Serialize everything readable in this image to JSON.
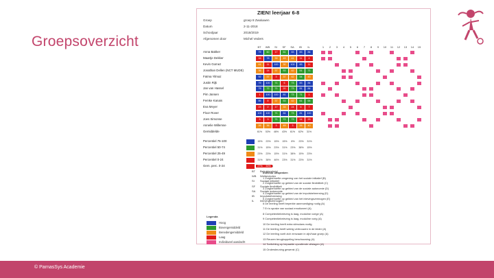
{
  "slide": {
    "title": "Groepsoverzicht",
    "footer": "© ParnasSys Academie"
  },
  "sheet": {
    "title": "ZIEN! leerjaar 6-8",
    "meta": [
      {
        "label": "Groep",
        "value": "groep 8 Zwaluwen"
      },
      {
        "label": "Datum",
        "value": "2-11-2018"
      },
      {
        "label": "Schooljaar",
        "value": "2018/2019"
      },
      {
        "label": "Afgenomen door",
        "value": "Michel Veders"
      }
    ],
    "columns": [
      "BT",
      "WB",
      "SI",
      "SF",
      "SA",
      "IB",
      "IL"
    ],
    "item_numbers": [
      "1",
      "2",
      "3",
      "4",
      "5",
      "6",
      "7",
      "8",
      "9",
      "10",
      "11",
      "12",
      "13",
      "14",
      "15"
    ],
    "students": [
      "Anna Bakker",
      "Maartje Dekker",
      "Kevin Gomez",
      "Jonathan Dellen (NCT MUDE)",
      "Fatma Yilmaz",
      "Justin Rijk",
      "Jan van Hassel",
      "Pim Jansen",
      "Femke Kanais",
      "Eva Meyer",
      "Floor Rover",
      "Joes Simonse",
      "Annelie Willemse",
      "Gemiddelde"
    ],
    "values": [
      [
        "79",
        "60",
        "17",
        "61",
        "83",
        "83",
        "84"
      ],
      [
        "16",
        "78",
        "39",
        "49",
        "41",
        "11",
        "4"
      ],
      [
        "41",
        "11",
        "100",
        "30",
        "100",
        "83",
        "11"
      ],
      [
        "36",
        "14",
        "37",
        "53",
        "42",
        "51",
        "71"
      ],
      [
        "92",
        "37",
        "3",
        "37",
        "42",
        "54",
        "43"
      ],
      [
        "79",
        "100",
        "71",
        "6",
        "73",
        "83",
        "84"
      ],
      [
        "79",
        "72",
        "71",
        "20",
        "73",
        "81",
        "84"
      ],
      [
        "1",
        "100",
        "100",
        "81",
        "73",
        "71",
        "1"
      ],
      [
        "86",
        "8",
        "37",
        "53",
        "42",
        "61",
        "64"
      ],
      [
        "23",
        "2",
        "17",
        "33",
        "24",
        "6",
        "7"
      ],
      [
        "100",
        "100",
        "71",
        "84",
        "73",
        "81",
        "100"
      ],
      [
        "3",
        "3",
        "71",
        "72",
        "73",
        "14",
        "23"
      ],
      [
        "26",
        "36",
        "3",
        "49",
        "3",
        "26",
        "40"
      ],
      [
        "61%",
        "53%",
        "46%",
        "43%",
        "61%",
        "62%",
        "31%"
      ]
    ],
    "summary": [
      {
        "label": "Percentiel 75-100",
        "values": [
          "15%",
          "23%",
          "15%",
          "15%",
          "8%",
          "23%",
          "31%"
        ]
      },
      {
        "label": "Percentiel 50-74",
        "values": [
          "31%",
          "15%",
          "23%",
          "31%",
          "23%",
          "38%",
          "15%"
        ]
      },
      {
        "label": "Percentiel 25-49",
        "values": [
          "23%",
          "23%",
          "15%",
          "31%",
          "38%",
          "15%",
          "23%"
        ]
      },
      {
        "label": "Percentiel 0-24",
        "values": [
          "31%",
          "38%",
          "46%",
          "23%",
          "31%",
          "23%",
          "31%"
        ]
      },
      {
        "label": "Gem. perc. 0-24",
        "values": [
          "27%",
          "33%",
          "",
          "",
          "",
          "",
          ""
        ]
      }
    ],
    "categories_title": "Categorieën",
    "categories": [
      {
        "code": "BT",
        "label": "Betrokkenheid"
      },
      {
        "code": "WB",
        "label": "Welbevinden"
      },
      {
        "code": "SI",
        "label": "Sociaal initiatief"
      },
      {
        "code": "SF",
        "label": "Sociale flexibiliteit"
      },
      {
        "code": "SA",
        "label": "Sociale autonomie"
      },
      {
        "code": "IB",
        "label": "Impulsbeheersing"
      },
      {
        "code": "IL",
        "label": "Inlevingsvermogen"
      }
    ],
    "legend_title": "Legenda",
    "legend": [
      {
        "label": "Hoog",
        "color": "#1f3fb5"
      },
      {
        "label": "Bovengemiddeld",
        "color": "#2e9a2e"
      },
      {
        "label": "Benedengemiddeld",
        "color": "#f08a17"
      },
      {
        "label": "Laag",
        "color": "#e01b1b"
      },
      {
        "label": "Individueel aandacht",
        "color": "#e84c8a"
      }
    ],
    "items_title": "Individu uitspraken",
    "items": [
      "1  Zorgbehoefte omgeving van het sociale initiatief (B)",
      "2  Zorgbehoefte op gebied van de sociale flexibiliteit (C)",
      "3  Zorgbehoefte op gebied van de sociale autonomie (D)",
      "4  Zorgbehoefte op gebied van de impulsbeheersing (D)",
      "5  Zorgbehoefte op gebied van het inlevingsvermogen (E)",
      "6  De leerling heeft beperkte aanmoediging nodig (A)",
      "7  Er is sprake van sociaal emotioneel (A)",
      "8  Competentiebeleving is laag, moduline vorige (A)",
      "9  Competentiebeleving is laag, moduline vorig (A)",
      "10  De leerling heeft extra stimulans nodig",
      "11  De leerling heeft weinig vertrouwen in de leider (A)",
      "12  De leerling voelt zich eenzaam in zijn/haar groep (A)",
      "13  Reuzen terugkoppeling beschouwing (A)",
      "14  Toelichting op bepaalde opvallende uitslagen (A)",
      "15  Ondersteuning gewenst (C)"
    ]
  }
}
